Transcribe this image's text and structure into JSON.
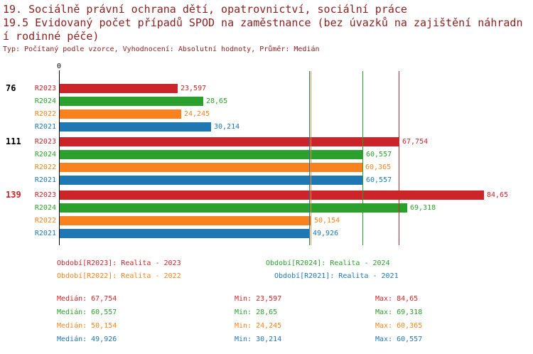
{
  "header": {
    "line1": "19. Sociálně právní ochrana dětí, opatrovnictví, sociální práce",
    "line2": "19.5 Evidovaný počet případů SPOD na zaměstnance (bez úvazků na zajištění náhradní rodinné péče)",
    "subtitle": "Typ: Počítaný podle vzorce, Vyhodnocení: Absolutní hodnoty, Průměr: Medián"
  },
  "colors": {
    "R2023": "#cc2529",
    "R2024": "#2ca02c",
    "R2022": "#f8821d",
    "R2021": "#1f77b4",
    "title": "#8b1f1f",
    "axis": "#000000",
    "group_label": "#000000",
    "group_label_highlight": "#cc2529"
  },
  "chart_data": {
    "type": "bar",
    "orientation": "horizontal",
    "x_axis": {
      "zero_label": "0",
      "min": 0,
      "max_shown_value": 84.65
    },
    "series_order": [
      "R2023",
      "R2024",
      "R2022",
      "R2021"
    ],
    "groups": [
      {
        "label": "76",
        "label_color": "#000000",
        "bars": [
          {
            "series": "R2023",
            "value": 23.597,
            "display": "23,597"
          },
          {
            "series": "R2024",
            "value": 28.65,
            "display": "28,65"
          },
          {
            "series": "R2022",
            "value": 24.245,
            "display": "24,245"
          },
          {
            "series": "R2021",
            "value": 30.214,
            "display": "30,214"
          }
        ]
      },
      {
        "label": "111",
        "label_color": "#000000",
        "bars": [
          {
            "series": "R2023",
            "value": 67.754,
            "display": "67,754"
          },
          {
            "series": "R2024",
            "value": 60.557,
            "display": "60,557"
          },
          {
            "series": "R2022",
            "value": 60.365,
            "display": "60,365"
          },
          {
            "series": "R2021",
            "value": 60.557,
            "display": "60,557"
          }
        ]
      },
      {
        "label": "139",
        "label_color": "#cc2529",
        "bars": [
          {
            "series": "R2023",
            "value": 84.65,
            "display": "84,65"
          },
          {
            "series": "R2024",
            "value": 69.318,
            "display": "69,318"
          },
          {
            "series": "R2022",
            "value": 50.154,
            "display": "50,154"
          },
          {
            "series": "R2021",
            "value": 49.926,
            "display": "49,926"
          }
        ]
      }
    ],
    "median_lines": [
      {
        "series": "R2023",
        "value": 67.754
      },
      {
        "series": "R2024",
        "value": 60.557
      },
      {
        "series": "R2022",
        "value": 50.154
      },
      {
        "series": "R2021",
        "value": 49.926
      }
    ]
  },
  "legend": [
    {
      "series": "R2023",
      "label": "Období[R2023]: Realita - 2023"
    },
    {
      "series": "R2024",
      "label": "Období[R2024]: Realita - 2024"
    },
    {
      "series": "R2022",
      "label": "Období[R2022]: Realita - 2022"
    },
    {
      "series": "R2021",
      "label": "Období[R2021]: Realita - 2021"
    }
  ],
  "stats_labels": {
    "median": "Medián",
    "min": "Min",
    "max": "Max"
  },
  "stats": [
    {
      "series": "R2023",
      "median": "67,754",
      "min": "23,597",
      "max": "84,65"
    },
    {
      "series": "R2024",
      "median": "60,557",
      "min": "28,65",
      "max": "69,318"
    },
    {
      "series": "R2022",
      "median": "50,154",
      "min": "24,245",
      "max": "60,365"
    },
    {
      "series": "R2021",
      "median": "49,926",
      "min": "30,214",
      "max": "60,557"
    }
  ]
}
